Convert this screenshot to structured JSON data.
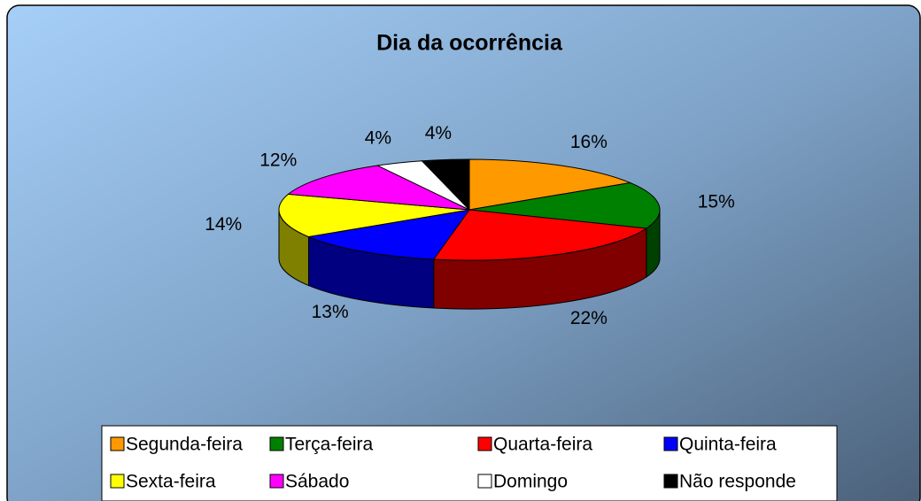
{
  "chart_data": {
    "type": "pie3d",
    "title": "Dia da ocorrência",
    "categories": [
      "Segunda-feira",
      "Terça-feira",
      "Quarta-feira",
      "Quinta-feira",
      "Sexta-feira",
      "Sábado",
      "Domingo",
      "Não responde"
    ],
    "values": [
      16,
      15,
      22,
      13,
      14,
      12,
      4,
      4
    ],
    "value_labels": [
      "16%",
      "15%",
      "22%",
      "13%",
      "14%",
      "12%",
      "4%",
      "4%"
    ],
    "colors": [
      "#ff9900",
      "#008000",
      "#ff0000",
      "#0000ff",
      "#ffff00",
      "#ff00ff",
      "#ffffff",
      "#000000"
    ],
    "legend": "bottom"
  }
}
